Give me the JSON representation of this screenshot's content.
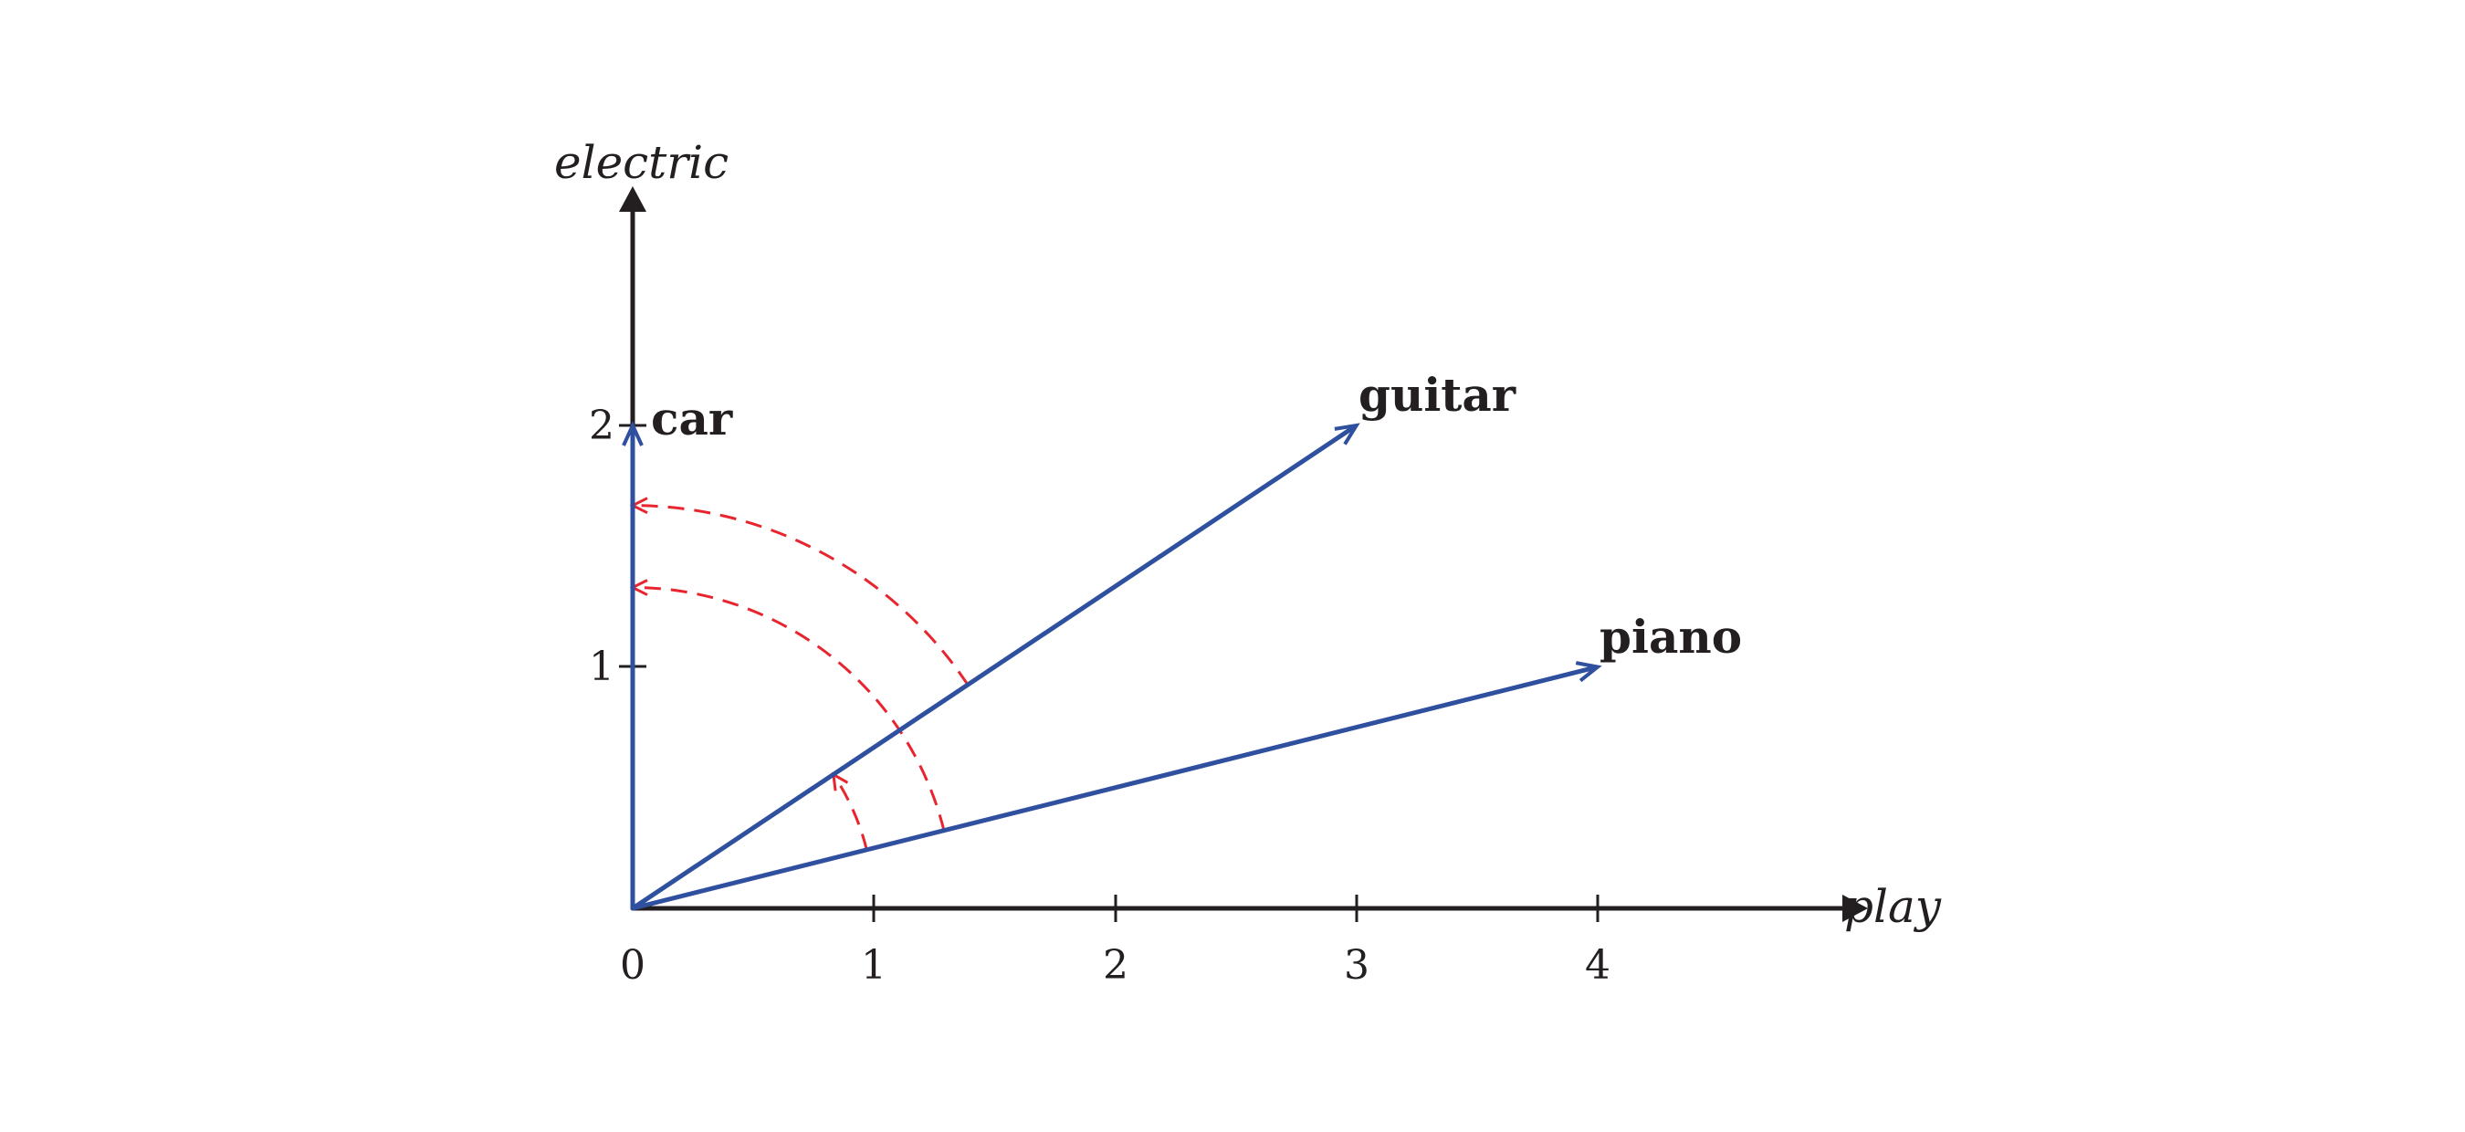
{
  "axes": {
    "x_label": "play",
    "y_label": "electric",
    "x_ticks": [
      "0",
      "1",
      "2",
      "3",
      "4"
    ],
    "y_ticks": [
      "1",
      "2"
    ],
    "x_range": [
      0,
      4.9
    ],
    "y_range": [
      0,
      3
    ]
  },
  "vectors": [
    {
      "id": "car",
      "label": "car",
      "x": 0,
      "y": 2
    },
    {
      "id": "guitar",
      "label": "guitar",
      "x": 3,
      "y": 2
    },
    {
      "id": "piano",
      "label": "piano",
      "x": 4,
      "y": 1
    }
  ],
  "angle_arcs": [
    {
      "from": "piano",
      "to": "guitar",
      "radius": 1
    },
    {
      "from": "piano",
      "to": "car",
      "radius": 1.33
    },
    {
      "from": "guitar",
      "to": "car",
      "radius": 1.67
    }
  ],
  "colors": {
    "axis": "#231f20",
    "vector": "#2f4f9f",
    "arc": "#e8252f",
    "text": "#231f20"
  }
}
